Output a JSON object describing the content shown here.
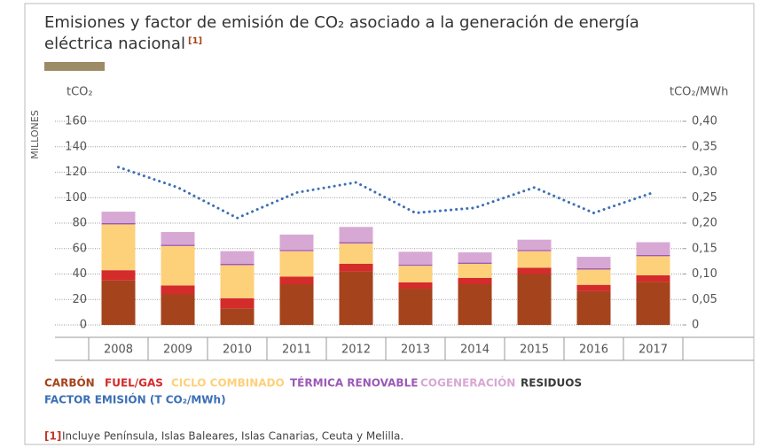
{
  "chart_data": {
    "type": "bar",
    "title": "Emisiones y factor de emisión de CO₂ asociado a la generación de energía",
    "title_line2": "eléctrica nacional",
    "title_note": "[1]",
    "y_unit": "tCO₂",
    "y_label": "MILLONES",
    "y2_unit": "tCO₂/MWh",
    "stacked": true,
    "grid": true,
    "categories": [
      "2008",
      "2009",
      "2010",
      "2011",
      "2012",
      "2013",
      "2014",
      "2015",
      "2016",
      "2017"
    ],
    "series": [
      {
        "name": "CARBÓN",
        "color": "#a5431c",
        "values": [
          35,
          24,
          13,
          32,
          42,
          28.5,
          32,
          40,
          26.5,
          34
        ]
      },
      {
        "name": "FUEL/GAS",
        "color": "#d42b2b",
        "values": [
          8,
          7,
          8,
          6,
          6,
          5,
          5,
          5,
          5,
          5
        ]
      },
      {
        "name": "CICLO COMBINADO",
        "color": "#fdd07a",
        "values": [
          36,
          31,
          26,
          20,
          16,
          13,
          11,
          13,
          12,
          15
        ]
      },
      {
        "name": "TÉRMICA RENOVABLE",
        "color": "#9b59b6",
        "values": [
          1,
          1,
          1,
          1,
          1,
          1,
          1,
          1,
          1,
          1
        ]
      },
      {
        "name": "COGENERACIÓN",
        "color": "#d8a8d4",
        "values": [
          9,
          10,
          10,
          12,
          12,
          10,
          8,
          8,
          9,
          10
        ]
      },
      {
        "name": "RESIDUOS",
        "color": "#3a3a3a",
        "values": [
          0,
          0,
          0,
          0,
          0,
          0,
          0,
          0,
          0,
          0
        ]
      },
      {
        "name": "FACTOR EMISIÓN (T CO₂/MWh)",
        "color": "#3b6fb6",
        "type": "line",
        "axis": "y2",
        "values": [
          0.31,
          0.27,
          0.21,
          0.26,
          0.28,
          0.22,
          0.23,
          0.27,
          0.22,
          0.26
        ]
      }
    ],
    "ylim": [
      0,
      160
    ],
    "yticks": [
      0,
      20,
      40,
      60,
      80,
      100,
      120,
      140,
      160
    ],
    "y2lim": [
      0,
      0.4
    ],
    "y2ticks": [
      0,
      {
        "value": 0.05,
        "label": "0,05"
      },
      {
        "value": 0.1,
        "label": "0,10"
      },
      {
        "value": 0.15,
        "label": "0,15"
      },
      {
        "value": 0.2,
        "label": "0,20"
      },
      {
        "value": 0.25,
        "label": "0,25"
      },
      {
        "value": 0.3,
        "label": "0,30"
      },
      {
        "value": 0.35,
        "label": "0,35"
      },
      {
        "value": 0.4,
        "label": "0,40"
      }
    ],
    "footnote_marker": "[1]",
    "footnote": "Incluye Península, Islas Baleares, Islas Canarias, Ceuta y Melilla."
  }
}
